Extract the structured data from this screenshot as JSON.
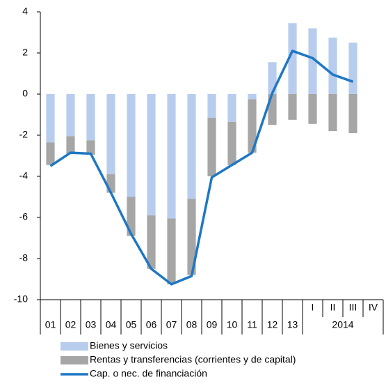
{
  "chart_data": {
    "type": "stacked_bar_line",
    "categories": [
      "01",
      "02",
      "03",
      "04",
      "05",
      "06",
      "07",
      "08",
      "09",
      "10",
      "11",
      "12",
      "13",
      "I",
      "II",
      "III",
      "IV"
    ],
    "x_group_label": "2014",
    "series": [
      {
        "name": "Bienes y servicios",
        "color": "#b8cdee",
        "kind": "bar",
        "values": [
          -2.35,
          -2.05,
          -2.25,
          -3.9,
          -5.0,
          -5.9,
          -6.05,
          -5.1,
          -1.15,
          -1.35,
          -0.25,
          1.55,
          3.45,
          3.2,
          2.75,
          2.5,
          null
        ]
      },
      {
        "name": "Rentas y transferencias (corrientes y de capital)",
        "color": "#a6a6a6",
        "kind": "bar",
        "values": [
          -1.1,
          -0.85,
          -0.7,
          -0.9,
          -1.9,
          -2.6,
          -3.2,
          -3.7,
          -2.85,
          -2.1,
          -2.6,
          -1.5,
          -1.25,
          -1.45,
          -1.8,
          -1.9,
          null
        ]
      },
      {
        "name": "Cap. o nec. de financiación",
        "color": "#1f77c4",
        "kind": "line",
        "values": [
          -3.5,
          -2.85,
          -2.9,
          -4.8,
          -6.8,
          -8.5,
          -9.25,
          -8.85,
          -4.05,
          -3.45,
          -2.85,
          0.05,
          2.1,
          1.75,
          0.95,
          0.6,
          null
        ]
      }
    ],
    "ylim": [
      -10,
      4
    ],
    "yticks": [
      -10,
      -8,
      -6,
      -4,
      -2,
      0,
      2,
      4
    ]
  }
}
